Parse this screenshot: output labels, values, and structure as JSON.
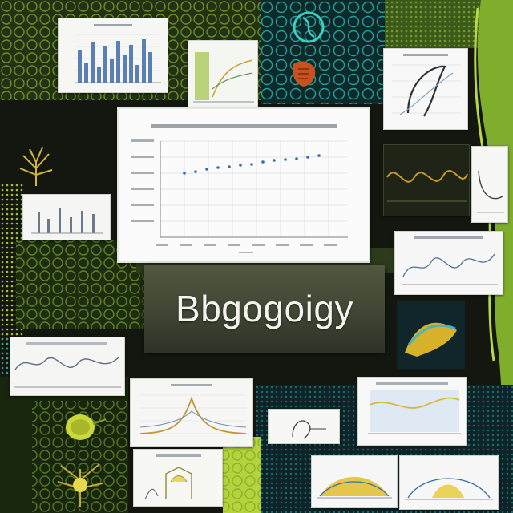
{
  "theme_word": "Bbgogoigy",
  "palette": {
    "background": "#14170f",
    "lime": "#a8c832",
    "teal": "#1fa3a0",
    "card": "#f4f5f2",
    "chart_line": "#c99a2a",
    "chart_blue": "#3d6fa8"
  },
  "icons": [
    "leaf-icon",
    "dna-icon",
    "cell-icon",
    "plant-icon"
  ]
}
